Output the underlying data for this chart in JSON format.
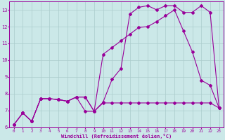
{
  "xlabel": "Windchill (Refroidissement éolien,°C)",
  "bg_color": "#cbe8e8",
  "line_color": "#990099",
  "grid_color": "#aacccc",
  "xlim": [
    -0.5,
    23.5
  ],
  "ylim": [
    6.0,
    13.5
  ],
  "yticks": [
    6,
    7,
    8,
    9,
    10,
    11,
    12,
    13
  ],
  "xticks": [
    0,
    1,
    2,
    3,
    4,
    5,
    6,
    7,
    8,
    9,
    10,
    11,
    12,
    13,
    14,
    15,
    16,
    17,
    18,
    19,
    20,
    21,
    22,
    23
  ],
  "line1_x": [
    0,
    1,
    2,
    3,
    4,
    5,
    6,
    7,
    8,
    9,
    10,
    11,
    12,
    13,
    14,
    15,
    16,
    17,
    18,
    19,
    20,
    21,
    22,
    23
  ],
  "line1_y": [
    6.15,
    6.85,
    6.35,
    7.7,
    7.7,
    7.65,
    7.55,
    7.8,
    7.8,
    6.95,
    7.5,
    8.85,
    9.5,
    12.75,
    13.15,
    13.25,
    13.0,
    13.25,
    13.25,
    12.85,
    12.85,
    13.25,
    12.85,
    7.15
  ],
  "line2_x": [
    0,
    1,
    2,
    3,
    4,
    5,
    6,
    7,
    8,
    9,
    10,
    11,
    12,
    13,
    14,
    15,
    16,
    17,
    18,
    19,
    20,
    21,
    22,
    23
  ],
  "line2_y": [
    6.15,
    6.85,
    6.35,
    7.7,
    7.7,
    7.65,
    7.55,
    7.8,
    7.8,
    6.95,
    10.35,
    10.75,
    11.15,
    11.55,
    11.95,
    12.0,
    12.3,
    12.65,
    13.0,
    11.75,
    10.5,
    8.8,
    8.5,
    7.15
  ],
  "line3_x": [
    0,
    1,
    2,
    3,
    4,
    5,
    6,
    7,
    8,
    9,
    10,
    11,
    12,
    13,
    14,
    15,
    16,
    17,
    18,
    19,
    20,
    21,
    22,
    23
  ],
  "line3_y": [
    6.15,
    6.85,
    6.35,
    7.7,
    7.7,
    7.65,
    7.55,
    7.8,
    6.95,
    6.95,
    7.45,
    7.45,
    7.45,
    7.45,
    7.45,
    7.45,
    7.45,
    7.45,
    7.45,
    7.45,
    7.45,
    7.45,
    7.45,
    7.15
  ]
}
